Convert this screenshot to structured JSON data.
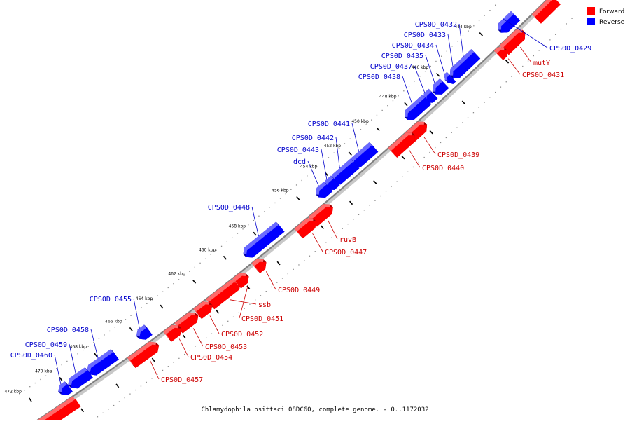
{
  "caption": "Chlamydophila psittaci 08DC60, complete genome. - 0..1172032",
  "colors": {
    "forward": "#ff0000",
    "forward_side": "#a30000",
    "forward_top": "#ff6a6a",
    "reverse": "#0000ff",
    "reverse_side": "#0000a0",
    "reverse_top": "#6a6aff",
    "backbone": "#808080",
    "label_forward": "#cc0000",
    "label_reverse": "#0000cc"
  },
  "legend": [
    {
      "label": "Forward",
      "strand": "forward"
    },
    {
      "label": "Reverse",
      "strand": "reverse"
    }
  ],
  "ticks": [
    "444 kbp",
    "446 kbp",
    "448 kbp",
    "450 kbp",
    "452 kbp",
    "454 kbp",
    "456 kbp",
    "458 kbp",
    "460 kbp",
    "462 kbp",
    "464 kbp",
    "466 kbp",
    "468 kbp",
    "470 kbp",
    "472 kbp"
  ],
  "genes": [
    {
      "name": "CPS0D_0429",
      "strand": "reverse"
    },
    {
      "name": "mutY",
      "strand": "forward"
    },
    {
      "name": "CPS0D_0431",
      "strand": "forward"
    },
    {
      "name": "CPS0D_0432",
      "strand": "reverse"
    },
    {
      "name": "CPS0D_0433",
      "strand": "reverse"
    },
    {
      "name": "CPS0D_0434",
      "strand": "reverse"
    },
    {
      "name": "CPS0D_0435",
      "strand": "reverse"
    },
    {
      "name": "CPS0D_0437",
      "strand": "reverse"
    },
    {
      "name": "CPS0D_0438",
      "strand": "reverse"
    },
    {
      "name": "CPS0D_0439",
      "strand": "forward"
    },
    {
      "name": "CPS0D_0440",
      "strand": "forward"
    },
    {
      "name": "CPS0D_0441",
      "strand": "reverse"
    },
    {
      "name": "CPS0D_0442",
      "strand": "reverse"
    },
    {
      "name": "CPS0D_0443",
      "strand": "reverse"
    },
    {
      "name": "dcd",
      "strand": "reverse"
    },
    {
      "name": "CPS0D_0448",
      "strand": "reverse"
    },
    {
      "name": "ruvB",
      "strand": "forward"
    },
    {
      "name": "CPS0D_0447",
      "strand": "forward"
    },
    {
      "name": "CPS0D_0449",
      "strand": "forward"
    },
    {
      "name": "ssb",
      "strand": "forward"
    },
    {
      "name": "CPS0D_0451",
      "strand": "forward"
    },
    {
      "name": "CPS0D_0452",
      "strand": "forward"
    },
    {
      "name": "CPS0D_0453",
      "strand": "forward"
    },
    {
      "name": "CPS0D_0454",
      "strand": "forward"
    },
    {
      "name": "CPS0D_0455",
      "strand": "reverse"
    },
    {
      "name": "CPS0D_0458",
      "strand": "reverse"
    },
    {
      "name": "CPS0D_0459",
      "strand": "reverse"
    },
    {
      "name": "CPS0D_0460",
      "strand": "reverse"
    },
    {
      "name": "CPS0D_0457",
      "strand": "forward"
    }
  ]
}
